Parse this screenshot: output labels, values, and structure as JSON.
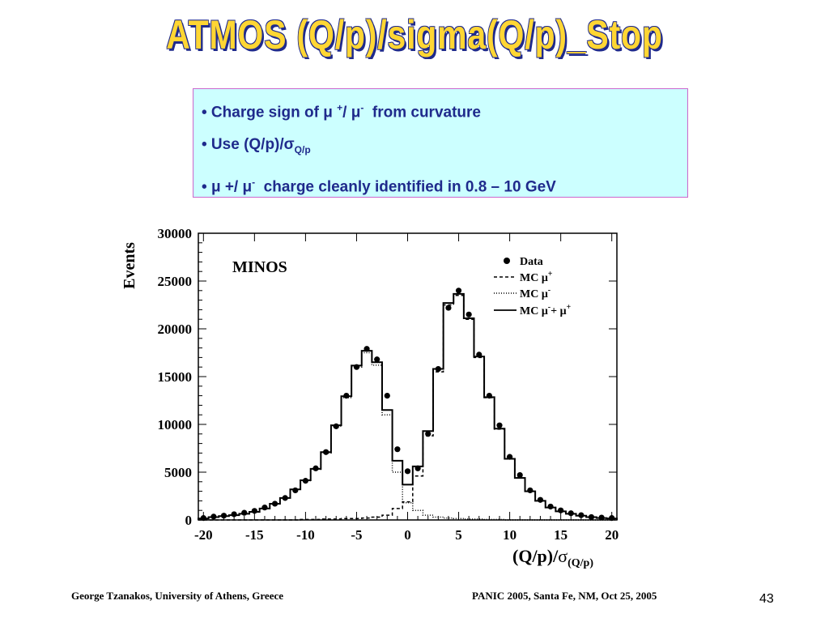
{
  "slide": {
    "title": "ATMOS  (Q/p)/sigma(Q/p)_Stop",
    "footer_left": "George Tzanakos, University of Athens, Greece",
    "footer_right": "PANIC 2005, Santa Fe, NM, Oct 25, 2005",
    "page_number": "43",
    "title_color": "#ffd633",
    "title_outline_color": "#1f2a8c",
    "box_background": "#ccffff",
    "box_border": "#cc66cc",
    "box_text_color": "#1f2a8c"
  },
  "bullets": {
    "b1": {
      "prefix": "• Charge sign of ",
      "mu1": "μ",
      "sup1": "+",
      "slash": "/ ",
      "mu2": "μ",
      "sup2": "-",
      "rest": "  from curvature"
    },
    "b2": {
      "prefix": "• Use (Q/p)/",
      "sigma": "σ",
      "sub": "Q/p"
    },
    "b3": {
      "prefix": "• ",
      "mu1": "μ",
      "mid": " +/ ",
      "mu2": "μ",
      "sup": "-",
      "rest": "  charge cleanly identified in 0.8 – 10 GeV"
    }
  },
  "chart_data": {
    "type": "line",
    "plot_label": "MINOS",
    "ylabel": "Events",
    "xlabel_main": "(Q/p)/",
    "xlabel_sigma": "σ",
    "xlabel_sub": "(Q/p)",
    "xlim": [
      -20.5,
      20.5
    ],
    "ylim": [
      0,
      30000
    ],
    "x_ticks": [
      -20,
      -15,
      -10,
      -5,
      0,
      5,
      10,
      15,
      20
    ],
    "x_tick_labels": [
      "-20",
      "-15",
      "-10",
      "-5",
      "0",
      "5",
      "10",
      "15",
      "20"
    ],
    "y_ticks": [
      0,
      5000,
      10000,
      15000,
      20000,
      25000,
      30000
    ],
    "y_tick_labels": [
      "0",
      "5000",
      "10000",
      "15000",
      "20000",
      "25000",
      "30000"
    ],
    "grid": false,
    "legend_position": "top-right",
    "legend": [
      {
        "label": "Data",
        "style": "marker"
      },
      {
        "label": "MC μ+",
        "base": "MC μ",
        "sup": "+",
        "style": "dashed"
      },
      {
        "label": "MC μ-",
        "base": "MC μ",
        "sup": "-",
        "style": "dotted"
      },
      {
        "label": "MC μ- + μ+",
        "base": "MC μ",
        "sup": "-",
        "mid": "+ μ",
        "sup2": "+",
        "style": "solid"
      }
    ],
    "bin_edges": [
      -20.5,
      -19.5,
      -18.5,
      -17.5,
      -16.5,
      -15.5,
      -14.5,
      -13.5,
      -12.5,
      -11.5,
      -10.5,
      -9.5,
      -8.5,
      -7.5,
      -6.5,
      -5.5,
      -4.5,
      -3.5,
      -2.5,
      -1.5,
      -0.5,
      0.5,
      1.5,
      2.5,
      3.5,
      4.5,
      5.5,
      6.5,
      7.5,
      8.5,
      9.5,
      10.5,
      11.5,
      12.5,
      13.5,
      14.5,
      15.5,
      16.5,
      17.5,
      18.5,
      19.5,
      20.5
    ],
    "series": [
      {
        "name": "Data",
        "x": [
          -20,
          -19,
          -18,
          -17,
          -16,
          -15,
          -14,
          -13,
          -12,
          -11,
          -10,
          -9,
          -8,
          -7,
          -6,
          -5,
          -4,
          -3,
          -2,
          -1,
          0,
          1,
          2,
          3,
          4,
          5,
          6,
          7,
          8,
          9,
          10,
          11,
          12,
          13,
          14,
          15,
          16,
          17,
          18,
          19,
          20
        ],
        "y": [
          200,
          350,
          450,
          600,
          750,
          950,
          1300,
          1700,
          2300,
          3100,
          4100,
          5400,
          7100,
          9800,
          13000,
          16000,
          17900,
          16800,
          13000,
          7400,
          5100,
          5400,
          9000,
          15800,
          22200,
          24000,
          21500,
          17300,
          13000,
          9900,
          6600,
          4700,
          3100,
          2100,
          1400,
          1000,
          700,
          500,
          300,
          250,
          200
        ]
      },
      {
        "name": "MC μ+",
        "y": [
          0,
          0,
          0,
          0,
          0,
          0,
          0,
          0,
          0,
          0,
          50,
          50,
          100,
          100,
          150,
          150,
          200,
          300,
          500,
          1200,
          1900,
          4600,
          8800,
          15500,
          22500,
          23500,
          21000,
          17000,
          12800,
          9500,
          6400,
          4400,
          3000,
          2000,
          1300,
          900,
          650,
          450,
          300,
          200,
          150
        ]
      },
      {
        "name": "MC μ-",
        "y": [
          150,
          300,
          400,
          500,
          650,
          850,
          1200,
          1700,
          2300,
          3200,
          4100,
          5300,
          7000,
          9800,
          12800,
          16000,
          17500,
          16200,
          11000,
          5000,
          1800,
          1000,
          500,
          300,
          200,
          150,
          100,
          100,
          50,
          50,
          0,
          0,
          0,
          0,
          0,
          0,
          0,
          0,
          0,
          0,
          0
        ]
      },
      {
        "name": "MC μ- + μ+",
        "y": [
          150,
          300,
          400,
          500,
          650,
          850,
          1200,
          1700,
          2300,
          3200,
          4150,
          5350,
          7100,
          9900,
          12950,
          16150,
          17700,
          16500,
          11500,
          6200,
          3700,
          5600,
          9300,
          15800,
          22700,
          23650,
          21100,
          17100,
          12850,
          9550,
          6400,
          4400,
          3000,
          2000,
          1300,
          900,
          650,
          450,
          300,
          200,
          150
        ]
      }
    ]
  }
}
